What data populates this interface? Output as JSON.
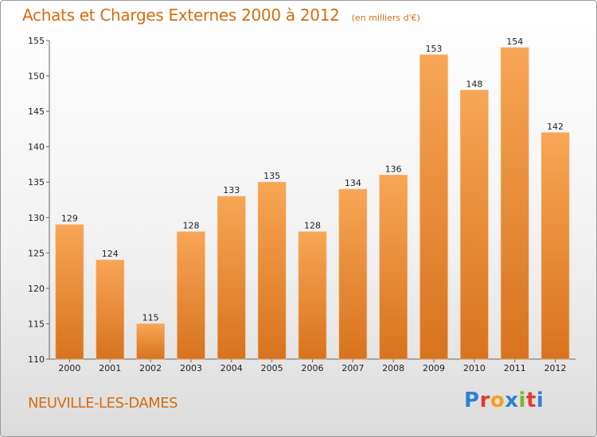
{
  "title": "Achats et Charges Externes 2000 à 2012",
  "unit_note": "(en milliers d'€)",
  "commune": "NEUVILLE-LES-DAMES",
  "logo": {
    "letters": [
      "P",
      "r",
      "o",
      "x",
      "i",
      "t",
      "i"
    ],
    "colors": [
      "#2f7fd6",
      "#e63a2e",
      "#f4a11d",
      "#2f7fd6",
      "#7bb52a",
      "#e63a2e",
      "#2f7fd6"
    ]
  },
  "colors": {
    "bar_top": "#f7a655",
    "bar_bottom": "#d8731e",
    "accent": "#d46d10"
  },
  "chart_data": {
    "type": "bar",
    "categories": [
      "2000",
      "2001",
      "2002",
      "2003",
      "2004",
      "2005",
      "2006",
      "2007",
      "2008",
      "2009",
      "2010",
      "2011",
      "2012"
    ],
    "values": [
      129,
      124,
      115,
      128,
      133,
      135,
      128,
      134,
      136,
      153,
      148,
      154,
      142
    ],
    "ylim": [
      110,
      155
    ],
    "yticks": [
      110,
      115,
      120,
      125,
      130,
      135,
      140,
      145,
      150,
      155
    ],
    "grid": false
  }
}
